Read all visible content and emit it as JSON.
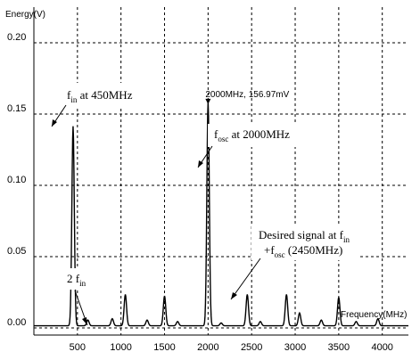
{
  "chart_data": {
    "type": "line",
    "ylabel": "Energy(V)",
    "xlabel": "Frequency(MHz)",
    "xlim": [
      0,
      4300
    ],
    "ylim": [
      -0.005,
      0.225
    ],
    "grid": true,
    "x_ticks": [
      500,
      1000,
      1500,
      2000,
      2500,
      3000,
      3500,
      4000
    ],
    "x_tick_labels": [
      "500",
      "1000",
      "1500",
      "2000",
      "2500",
      "3000",
      "3500",
      "4000"
    ],
    "y_ticks": [
      0.0,
      0.05,
      0.1,
      0.15,
      0.2
    ],
    "y_tick_labels": [
      "0.00",
      "0.05",
      "0.10",
      "0.15",
      "0.20"
    ],
    "peaks": [
      {
        "x": 450,
        "y": 0.14
      },
      {
        "x": 620,
        "y": 0.004
      },
      {
        "x": 900,
        "y": 0.005
      },
      {
        "x": 1050,
        "y": 0.022
      },
      {
        "x": 1300,
        "y": 0.004
      },
      {
        "x": 1500,
        "y": 0.021
      },
      {
        "x": 1650,
        "y": 0.003
      },
      {
        "x": 2000,
        "y": 0.15697
      },
      {
        "x": 2150,
        "y": 0.002
      },
      {
        "x": 2450,
        "y": 0.022
      },
      {
        "x": 2600,
        "y": 0.003
      },
      {
        "x": 2900,
        "y": 0.022
      },
      {
        "x": 3050,
        "y": 0.009
      },
      {
        "x": 3300,
        "y": 0.004
      },
      {
        "x": 3500,
        "y": 0.02
      },
      {
        "x": 3700,
        "y": 0.003
      },
      {
        "x": 3950,
        "y": 0.005
      }
    ],
    "marker": {
      "x": 2000,
      "y": 0.15697,
      "label": "2000MHz, 156.97mV"
    },
    "annotations": [
      {
        "main": "f",
        "sub": "in",
        "tail": " at 450MHz",
        "target_x": 450,
        "target_y": 0.14
      },
      {
        "main": "f",
        "sub": "osc",
        "tail": " at 2000MHz",
        "target_x": 2000,
        "target_y": 0.12
      },
      {
        "main": "2 f",
        "sub": "in",
        "tail": "",
        "target_x": 900,
        "target_y": 0.005
      },
      {
        "line1_main": "Desired signal at f",
        "line1_sub": "in",
        "line2_main": "+f",
        "line2_sub": "osc",
        "line2_tail": " (2450MHz)",
        "target_x": 2450,
        "target_y": 0.022
      }
    ]
  }
}
